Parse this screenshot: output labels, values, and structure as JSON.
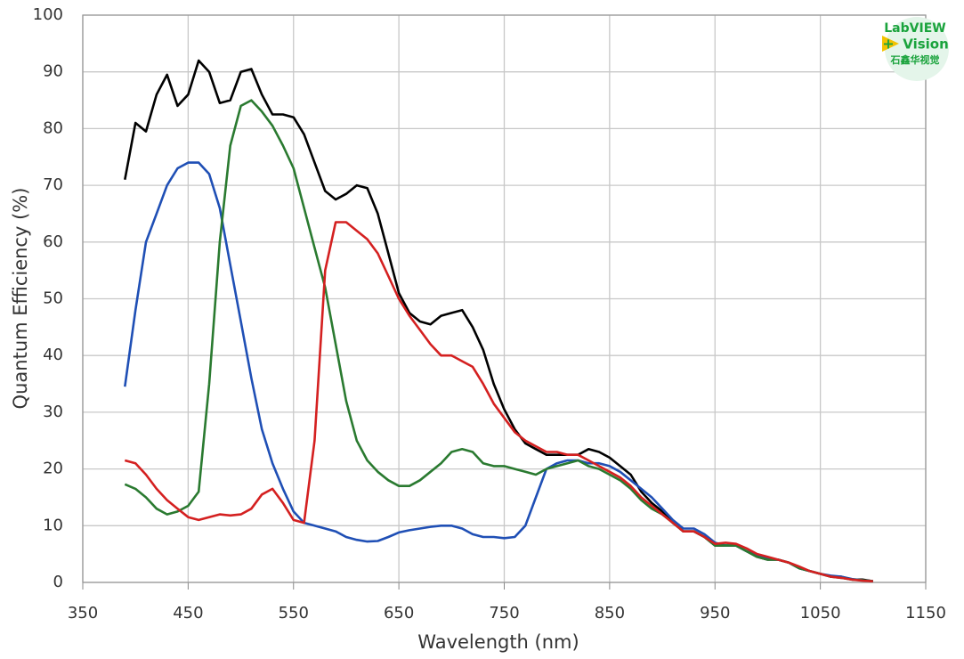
{
  "chart_data": {
    "type": "line",
    "x_label": "Wavelength (nm)",
    "y_label": "Quantum Efficiency (%)",
    "annotations": [
      "LabVIEW",
      "Vision",
      "石鑫华视觉"
    ],
    "xlim": [
      350,
      1150
    ],
    "xticks": [
      350,
      450,
      550,
      650,
      750,
      850,
      950,
      1050,
      1150
    ],
    "ylim": [
      0,
      100
    ],
    "yticks": [
      0,
      10,
      20,
      30,
      40,
      50,
      60,
      70,
      80,
      90,
      100
    ],
    "grid": true,
    "x": [
      390,
      400,
      410,
      420,
      430,
      440,
      450,
      460,
      470,
      480,
      490,
      500,
      510,
      520,
      530,
      540,
      550,
      560,
      570,
      580,
      590,
      600,
      610,
      620,
      630,
      640,
      650,
      660,
      670,
      680,
      690,
      700,
      710,
      720,
      730,
      740,
      750,
      760,
      770,
      780,
      790,
      800,
      810,
      820,
      830,
      840,
      850,
      860,
      870,
      880,
      890,
      900,
      910,
      920,
      930,
      940,
      950,
      960,
      970,
      980,
      990,
      1000,
      1010,
      1020,
      1030,
      1040,
      1050,
      1060,
      1070,
      1080,
      1090,
      1100
    ],
    "series": [
      {
        "color": "#000000",
        "values": [
          71,
          81,
          79.5,
          86,
          89.5,
          84,
          86,
          92,
          90,
          84.5,
          85,
          90,
          90.5,
          86,
          82.5,
          82.5,
          82,
          79,
          74,
          69,
          67.5,
          68.5,
          70,
          69.5,
          65,
          58,
          51,
          47.5,
          46,
          45.5,
          47,
          47.5,
          48,
          45,
          41,
          35,
          30.5,
          27,
          24.5,
          23.5,
          22.5,
          22.5,
          22.5,
          22.5,
          23.5,
          23,
          22,
          20.5,
          19,
          16,
          14,
          12.5,
          10.5,
          9,
          9,
          8,
          6.5,
          6.5,
          6.5,
          5.5,
          4.5,
          4,
          4,
          3.5,
          2.5,
          2,
          1.5,
          1,
          1,
          0.5,
          0.5,
          0.2
        ]
      },
      {
        "color": "#1f4fb5",
        "values": [
          34.5,
          48,
          60,
          65,
          70,
          73,
          74,
          74,
          72,
          66,
          56,
          46,
          36,
          27,
          21,
          16.5,
          12.5,
          10.5,
          10,
          9.5,
          9,
          8,
          7.5,
          7.2,
          7.3,
          8,
          8.8,
          9.2,
          9.5,
          9.8,
          10,
          10,
          9.5,
          8.5,
          8,
          8,
          7.8,
          8,
          10,
          15,
          20,
          21,
          21.5,
          21.5,
          21,
          21,
          20.5,
          19.5,
          18,
          16.5,
          15,
          13,
          11,
          9.5,
          9.5,
          8.5,
          7,
          6.5,
          6.5,
          5.5,
          4.8,
          4.2,
          4,
          3.5,
          2.5,
          2,
          1.5,
          1.2,
          1,
          0.6,
          0.4,
          0.2
        ]
      },
      {
        "color": "#2a7a30",
        "values": [
          17.3,
          16.5,
          15,
          13,
          12,
          12.5,
          13.5,
          16,
          35,
          60,
          77,
          84,
          85,
          83,
          80.5,
          77,
          73,
          66,
          59,
          52,
          42,
          32,
          25,
          21.5,
          19.5,
          18,
          17,
          17,
          18,
          19.5,
          21,
          23,
          23.5,
          23,
          21,
          20.5,
          20.5,
          20,
          19.5,
          19,
          20,
          20.5,
          21,
          21.5,
          20.5,
          20,
          19,
          18,
          16.5,
          14.5,
          13,
          12,
          10.5,
          9,
          9,
          8,
          6.5,
          6.5,
          6.5,
          5.5,
          4.5,
          4,
          4,
          3.5,
          2.5,
          2,
          1.5,
          1,
          0.8,
          0.5,
          0.4,
          0.2
        ]
      },
      {
        "color": "#d42020",
        "values": [
          21.5,
          21,
          19,
          16.5,
          14.5,
          13,
          11.5,
          11,
          11.5,
          12,
          11.8,
          12,
          13,
          15.5,
          16.5,
          14,
          11,
          10.5,
          25,
          55,
          63.5,
          63.5,
          62,
          60.5,
          58,
          54,
          50,
          47,
          44.5,
          42,
          40,
          40,
          39,
          38,
          35,
          31.5,
          29,
          26.5,
          25,
          24,
          23,
          23,
          22.5,
          22.5,
          21.5,
          20.5,
          19.5,
          18.5,
          17,
          15,
          13.5,
          12,
          10.5,
          9,
          9,
          8,
          6.8,
          7,
          6.8,
          6,
          5,
          4.5,
          4,
          3.5,
          2.8,
          2,
          1.5,
          1,
          0.8,
          0.5,
          0.3,
          0.2
        ]
      }
    ]
  }
}
